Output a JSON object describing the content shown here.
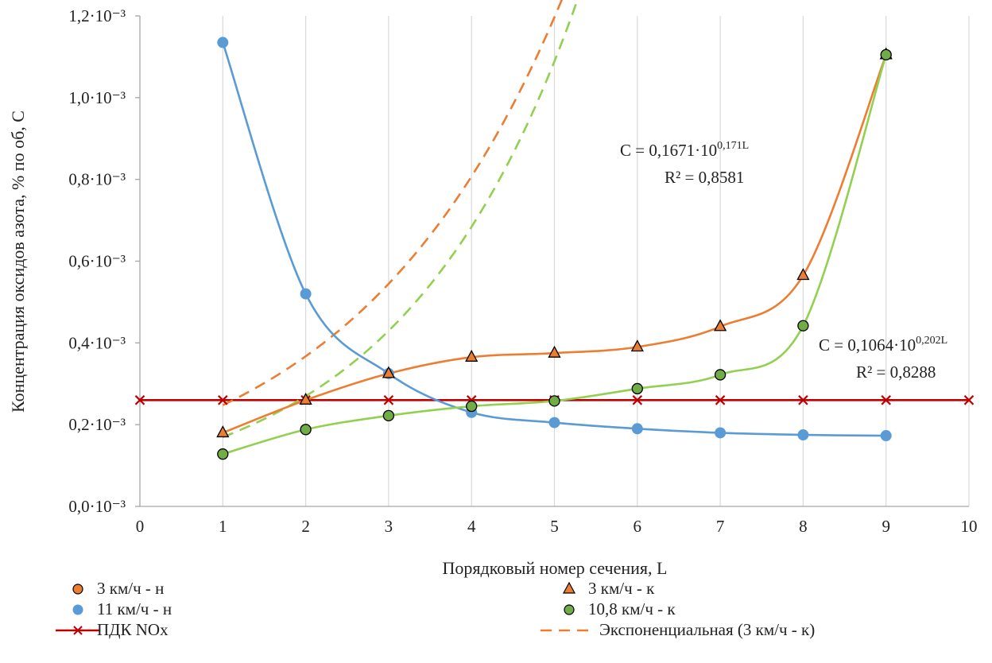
{
  "chart_data": {
    "type": "scatter",
    "title": "",
    "xlabel": "Порядковый номер сечения, L",
    "ylabel": "Концентрация оксидов азота, % по об, C",
    "xlim": [
      0,
      10
    ],
    "ylim": [
      0,
      1.2
    ],
    "x_ticks": [
      0,
      1,
      2,
      3,
      4,
      5,
      6,
      7,
      8,
      9,
      10
    ],
    "y_ticks": [
      0,
      0.2,
      0.4,
      0.6,
      0.8,
      1.0,
      1.2
    ],
    "x_tick_labels": [
      "0",
      "1",
      "2",
      "3",
      "4",
      "5",
      "6",
      "7",
      "8",
      "9",
      "10"
    ],
    "y_tick_labels": [
      "0,0·10⁻³",
      "0,2·10⁻³",
      "0,4·10⁻³",
      "0,6·10⁻³",
      "0,8·10⁻³",
      "1,0·10⁻³",
      "1,2·10⁻³"
    ],
    "grid": "vertical",
    "legend_position": "bottom",
    "series": [
      {
        "name": "3 км/ч - н",
        "marker": "circle",
        "color": "#ED7D31",
        "x": [
          1,
          2,
          3,
          4,
          5,
          6,
          7,
          8,
          9
        ],
        "y": [
          0.18,
          0.26,
          0.325,
          0.365,
          0.375,
          0.39,
          0.44,
          0.565,
          1.105
        ]
      },
      {
        "name": "3 км/ч - к",
        "marker": "triangle",
        "color": "#ED7D31",
        "x": [
          1,
          2,
          3,
          4,
          5,
          6,
          7,
          8,
          9
        ],
        "y": [
          0.18,
          0.26,
          0.325,
          0.365,
          0.375,
          0.39,
          0.44,
          0.565,
          1.105
        ]
      },
      {
        "name": "11 км/ч - н",
        "marker": "circle",
        "color": "#5B9BD5",
        "x": [
          1,
          2,
          3,
          4,
          5,
          6,
          7,
          8,
          9
        ],
        "y": [
          1.135,
          0.52,
          0.325,
          0.23,
          0.205,
          0.19,
          0.18,
          0.175,
          0.173
        ]
      },
      {
        "name": "10,8 км/ч - к",
        "marker": "circle",
        "color": "#70AD47",
        "x": [
          1,
          2,
          3,
          4,
          5,
          6,
          7,
          8,
          9
        ],
        "y": [
          0.128,
          0.188,
          0.222,
          0.245,
          0.258,
          0.288,
          0.322,
          0.442,
          1.105
        ]
      },
      {
        "name": "ПДК NOx",
        "marker": "x",
        "color": "#C00000",
        "x": [
          0,
          1,
          2,
          3,
          4,
          5,
          6,
          7,
          8,
          9,
          10
        ],
        "y": [
          0.26,
          0.26,
          0.26,
          0.26,
          0.26,
          0.26,
          0.26,
          0.26,
          0.26,
          0.26,
          0.26
        ]
      }
    ],
    "trendlines": [
      {
        "name": "Экспоненциальная (3 км/ч - к)",
        "type": "exponential",
        "color": "#ED7D31",
        "a": 0.1671,
        "b": 0.171,
        "x_range": [
          1,
          9
        ]
      },
      {
        "name": "",
        "type": "exponential",
        "color": "#92D050",
        "a": 0.1064,
        "b": 0.202,
        "x_range": [
          1,
          9
        ]
      }
    ],
    "annotations": [
      {
        "base": "C = 0,1671·10",
        "sup": "0,171L",
        "r2": "R² = 0,8581"
      },
      {
        "base": "C = 0,1064·10",
        "sup": "0,202L",
        "r2": "R² = 0,8288"
      }
    ]
  }
}
